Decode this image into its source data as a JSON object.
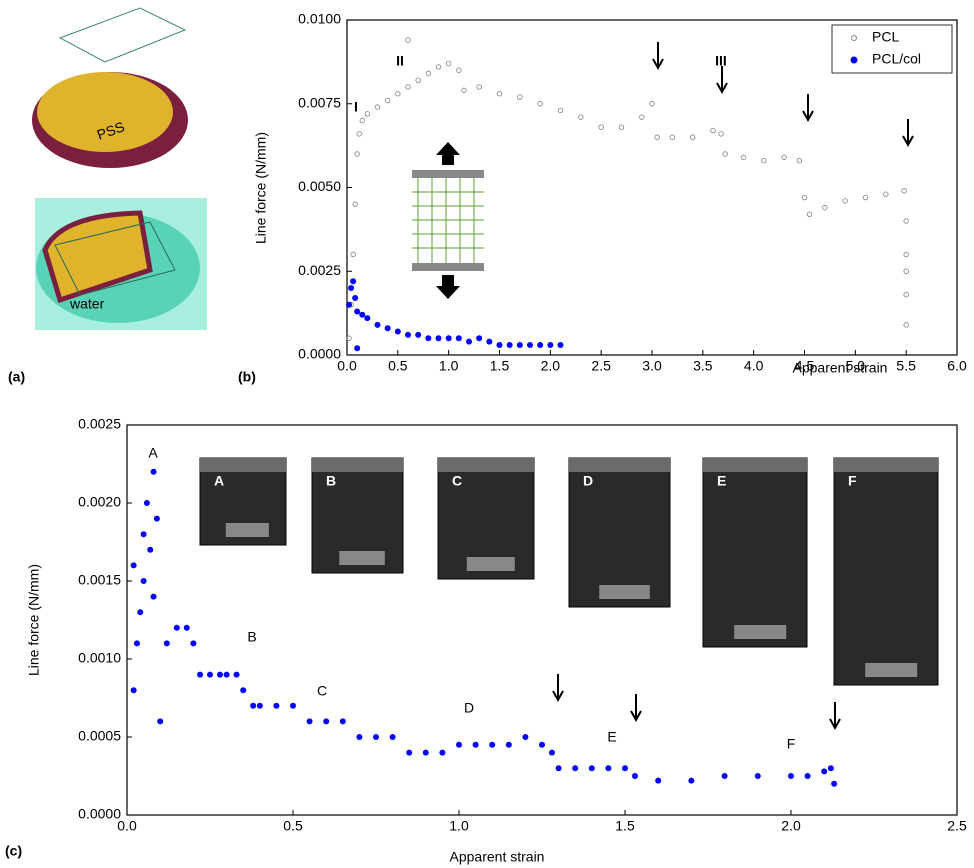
{
  "illustration": {
    "panel_label": "(a)",
    "labels": [
      "PSS",
      "water"
    ]
  },
  "chart_data": [
    {
      "type": "scatter",
      "panel_label": "(b)",
      "x_label": "Apparent strain",
      "y_label": "Line force (N/mm)",
      "xlim": [
        0,
        6
      ],
      "ylim": [
        0,
        0.01
      ],
      "xticks": [
        {
          "value": 0,
          "label": "0.0"
        },
        {
          "value": 0.5,
          "label": "0.5"
        },
        {
          "value": 1,
          "label": "1.0"
        },
        {
          "value": 1.5,
          "label": "1.5"
        },
        {
          "value": 2,
          "label": "2.0"
        },
        {
          "value": 2.5,
          "label": "2.5"
        },
        {
          "value": 3,
          "label": "3.0"
        },
        {
          "value": 3.5,
          "label": "3.5"
        },
        {
          "value": 4,
          "label": "4.0"
        },
        {
          "value": 4.5,
          "label": "4.5"
        },
        {
          "value": 5,
          "label": "5.0"
        },
        {
          "value": 5.5,
          "label": "5.5"
        },
        {
          "value": 6,
          "label": "6.0"
        }
      ],
      "yticks": [
        {
          "value": 0,
          "label": "0.0000"
        },
        {
          "value": 0.0025,
          "label": "0.0025"
        },
        {
          "value": 0.005,
          "label": "0.0050"
        },
        {
          "value": 0.0075,
          "label": "0.0075"
        },
        {
          "value": 0.01,
          "label": "0.0100"
        }
      ],
      "legend": "upper right",
      "annotations": [
        "I",
        "II",
        "III"
      ],
      "series": [
        {
          "name": "PCL",
          "color": "#808080",
          "marker": "open",
          "x": [
            0.02,
            0.04,
            0.06,
            0.08,
            0.1,
            0.12,
            0.15,
            0.2,
            0.3,
            0.4,
            0.5,
            0.6,
            0.6,
            0.7,
            0.8,
            0.9,
            1.0,
            1.1,
            1.15,
            1.3,
            1.5,
            1.7,
            1.9,
            2.1,
            2.3,
            2.5,
            2.7,
            2.9,
            3.0,
            3.05,
            3.2,
            3.4,
            3.6,
            3.68,
            3.72,
            3.9,
            4.1,
            4.3,
            4.45,
            4.5,
            4.55,
            4.7,
            4.9,
            5.1,
            5.3,
            5.48,
            5.5,
            5.5,
            5.5,
            5.5,
            5.5
          ],
          "values": [
            0.0005,
            0.0015,
            0.003,
            0.0045,
            0.006,
            0.0066,
            0.007,
            0.0072,
            0.0074,
            0.0076,
            0.0078,
            0.008,
            0.0094,
            0.0082,
            0.0084,
            0.0086,
            0.0087,
            0.0085,
            0.0079,
            0.008,
            0.0078,
            0.0077,
            0.0075,
            0.0073,
            0.0071,
            0.0068,
            0.0068,
            0.0071,
            0.0075,
            0.0065,
            0.0065,
            0.0065,
            0.0067,
            0.0066,
            0.006,
            0.0059,
            0.0058,
            0.0059,
            0.0058,
            0.0047,
            0.0042,
            0.0044,
            0.0046,
            0.0047,
            0.0048,
            0.0049,
            0.004,
            0.003,
            0.0025,
            0.0018,
            0.0009
          ]
        },
        {
          "name": "PCL/col",
          "color": "#0000ff",
          "marker": "filled",
          "x": [
            0.02,
            0.04,
            0.06,
            0.08,
            0.1,
            0.15,
            0.2,
            0.3,
            0.4,
            0.5,
            0.6,
            0.7,
            0.8,
            0.9,
            1.0,
            1.1,
            1.2,
            1.3,
            1.4,
            1.5,
            1.6,
            1.7,
            1.8,
            1.9,
            2.0,
            2.1,
            0.1
          ],
          "values": [
            0.0015,
            0.002,
            0.0022,
            0.0017,
            0.0013,
            0.0012,
            0.0011,
            0.0009,
            0.0008,
            0.0007,
            0.0006,
            0.0006,
            0.0005,
            0.0005,
            0.0005,
            0.0005,
            0.0004,
            0.0005,
            0.0004,
            0.0003,
            0.0003,
            0.0003,
            0.0003,
            0.0003,
            0.0003,
            0.0003,
            0.0002
          ]
        }
      ]
    },
    {
      "type": "scatter",
      "panel_label": "(c)",
      "x_label": "Apparent strain",
      "y_label": "Line force (N/mm)",
      "xlim": [
        0,
        2.5
      ],
      "ylim": [
        0,
        0.0025
      ],
      "xticks": [
        {
          "value": 0,
          "label": "0.0"
        },
        {
          "value": 0.5,
          "label": "0.5"
        },
        {
          "value": 1,
          "label": "1.0"
        },
        {
          "value": 1.5,
          "label": "1.5"
        },
        {
          "value": 2,
          "label": "2.0"
        },
        {
          "value": 2.5,
          "label": "2.5"
        }
      ],
      "yticks": [
        {
          "value": 0,
          "label": "0.0000"
        },
        {
          "value": 0.0005,
          "label": "0.0005"
        },
        {
          "value": 0.001,
          "label": "0.0010"
        },
        {
          "value": 0.0015,
          "label": "0.0015"
        },
        {
          "value": 0.002,
          "label": "0.0020"
        },
        {
          "value": 0.0025,
          "label": "0.0025"
        }
      ],
      "annotations": [
        "A",
        "B",
        "C",
        "D",
        "E",
        "F"
      ],
      "inset_labels": [
        "A",
        "B",
        "C",
        "D",
        "E",
        "F"
      ],
      "series": [
        {
          "name": "PCL/col",
          "color": "#0000ff",
          "marker": "filled",
          "x": [
            0.02,
            0.02,
            0.03,
            0.04,
            0.05,
            0.05,
            0.06,
            0.07,
            0.08,
            0.09,
            0.08,
            0.1,
            0.12,
            0.15,
            0.18,
            0.2,
            0.22,
            0.25,
            0.28,
            0.3,
            0.33,
            0.35,
            0.38,
            0.4,
            0.45,
            0.5,
            0.55,
            0.6,
            0.65,
            0.7,
            0.75,
            0.8,
            0.85,
            0.9,
            0.95,
            1.0,
            1.05,
            1.1,
            1.15,
            1.2,
            1.25,
            1.28,
            1.3,
            1.35,
            1.4,
            1.45,
            1.5,
            1.53,
            1.6,
            1.7,
            1.8,
            1.9,
            2.0,
            2.05,
            2.1,
            2.12,
            2.13
          ],
          "values": [
            0.0008,
            0.0016,
            0.0011,
            0.0013,
            0.0015,
            0.0018,
            0.002,
            0.0017,
            0.0022,
            0.0019,
            0.0014,
            0.0006,
            0.0011,
            0.0012,
            0.0012,
            0.0011,
            0.0009,
            0.0009,
            0.0009,
            0.0009,
            0.0009,
            0.0008,
            0.0007,
            0.0007,
            0.0007,
            0.0007,
            0.0006,
            0.0006,
            0.0006,
            0.0005,
            0.0005,
            0.0005,
            0.0004,
            0.0004,
            0.0004,
            0.00045,
            0.00045,
            0.00045,
            0.00045,
            0.0005,
            0.00045,
            0.0004,
            0.0003,
            0.0003,
            0.0003,
            0.0003,
            0.0003,
            0.00025,
            0.00022,
            0.00022,
            0.00025,
            0.00025,
            0.00025,
            0.00025,
            0.00028,
            0.0003,
            0.0002
          ]
        }
      ]
    }
  ]
}
